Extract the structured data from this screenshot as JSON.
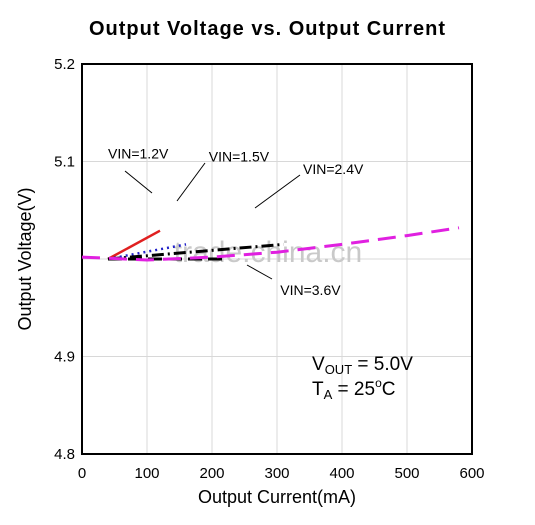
{
  "chart_data": {
    "type": "line",
    "title": "Output Voltage vs. Output Current",
    "xlabel": "Output Current(mA)",
    "ylabel": "Output Voltage(V)",
    "xlim": [
      0,
      600
    ],
    "ylim": [
      4.8,
      5.2
    ],
    "x_ticks": [
      "0",
      "100",
      "200",
      "300",
      "400",
      "500",
      "600"
    ],
    "y_ticks": [
      "4.8",
      "4.9",
      "5.1",
      "5.2"
    ],
    "grid": true,
    "series": [
      {
        "name": "VIN=1.2V",
        "color": "#e02020",
        "dash": "solid",
        "x": [
          40,
          120
        ],
        "y": [
          5.0,
          5.029
        ]
      },
      {
        "name": "VIN=1.5V",
        "color": "#2020c8",
        "dash": "dotted",
        "x": [
          40,
          160
        ],
        "y": [
          5.0,
          5.015
        ]
      },
      {
        "name": "VIN=2.4V",
        "color": "#000000",
        "dash": "dashdot",
        "x": [
          40,
          310
        ],
        "y": [
          5.0,
          5.015
        ]
      },
      {
        "name": "VIN=3.6V",
        "color": "#000000",
        "dash": "dashed",
        "x": [
          40,
          220
        ],
        "y": [
          5.0,
          5.0
        ]
      },
      {
        "name": "",
        "color": "#e020e0",
        "dash": "longdash",
        "x": [
          0,
          100,
          200,
          300,
          400,
          500,
          580
        ],
        "y": [
          5.002,
          4.999,
          5.002,
          5.007,
          5.015,
          5.024,
          5.032
        ]
      }
    ],
    "annotations": [
      {
        "text": "VIN=1.2V",
        "x": 40,
        "y": 5.103
      },
      {
        "text": "VIN=1.5V",
        "x": 195,
        "y": 5.1
      },
      {
        "text": "VIN=2.4V",
        "x": 340,
        "y": 5.087
      },
      {
        "text": "VIN=3.6V",
        "x": 305,
        "y": 4.963
      }
    ],
    "conditions": {
      "vout_main": "V",
      "vout_sub": "OUT",
      "vout_value": " = 5.0V",
      "ta_main": "T",
      "ta_sub": "A",
      "ta_value": " = 25",
      "ta_deg": "o",
      "ta_unit": "C"
    },
    "watermark": "trade.china.cn"
  }
}
